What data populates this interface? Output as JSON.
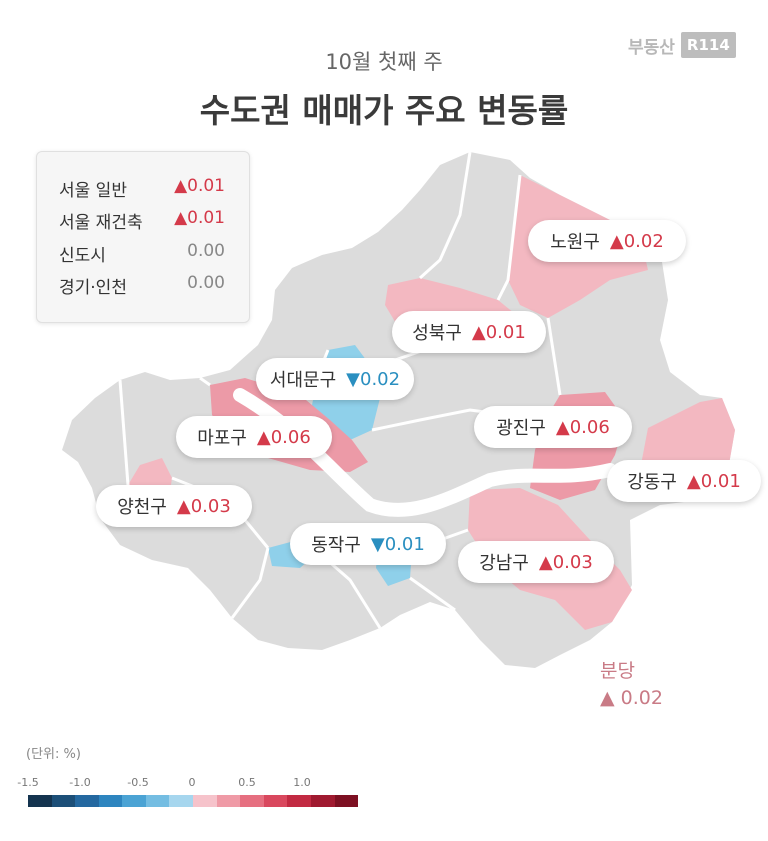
{
  "header": {
    "subtitle": "10월 첫째 주",
    "title": "수도권 매매가 주요 변동률"
  },
  "logo": {
    "text": "부동산",
    "box": "R114"
  },
  "legend": {
    "rows": [
      {
        "label": "서울 일반",
        "value": "▲0.01",
        "trend": "up"
      },
      {
        "label": "서울 재건축",
        "value": "▲0.01",
        "trend": "up"
      },
      {
        "label": "신도시",
        "value": "0.00",
        "trend": "flat"
      },
      {
        "label": "경기·인천",
        "value": "0.00",
        "trend": "flat"
      }
    ]
  },
  "districts": [
    {
      "name": "노원구",
      "value": "▲0.02",
      "trend": "up"
    },
    {
      "name": "성북구",
      "value": "▲0.01",
      "trend": "up"
    },
    {
      "name": "서대문구",
      "value": "▼0.02",
      "trend": "down"
    },
    {
      "name": "마포구",
      "value": "▲0.06",
      "trend": "up"
    },
    {
      "name": "광진구",
      "value": "▲0.06",
      "trend": "up"
    },
    {
      "name": "강동구",
      "value": "▲0.01",
      "trend": "up"
    },
    {
      "name": "양천구",
      "value": "▲0.03",
      "trend": "up"
    },
    {
      "name": "동작구",
      "value": "▼0.01",
      "trend": "down"
    },
    {
      "name": "강남구",
      "value": "▲0.03",
      "trend": "up"
    }
  ],
  "bundang": {
    "name": "분당",
    "value": "▲ 0.02"
  },
  "unit_label": "(단위:  %)",
  "scale": {
    "ticks": [
      "-1.5",
      "-1.0",
      "-0.5",
      "0",
      "0.5",
      "1.0"
    ],
    "colors": [
      "#14344f",
      "#1c4f78",
      "#2468a0",
      "#2e85bf",
      "#4ba3d4",
      "#74bde2",
      "#a6d6ee",
      "#f6c3cb",
      "#ef9aa6",
      "#e66f80",
      "#d9485e",
      "#c22a42",
      "#a01a30",
      "#7d1022"
    ]
  },
  "colors": {
    "map_base": "#dcdcdc",
    "increase_light": "#f3b8c1",
    "increase_strong": "#ec9aa7",
    "decrease": "#8fd0ea",
    "river": "#ffffff"
  }
}
